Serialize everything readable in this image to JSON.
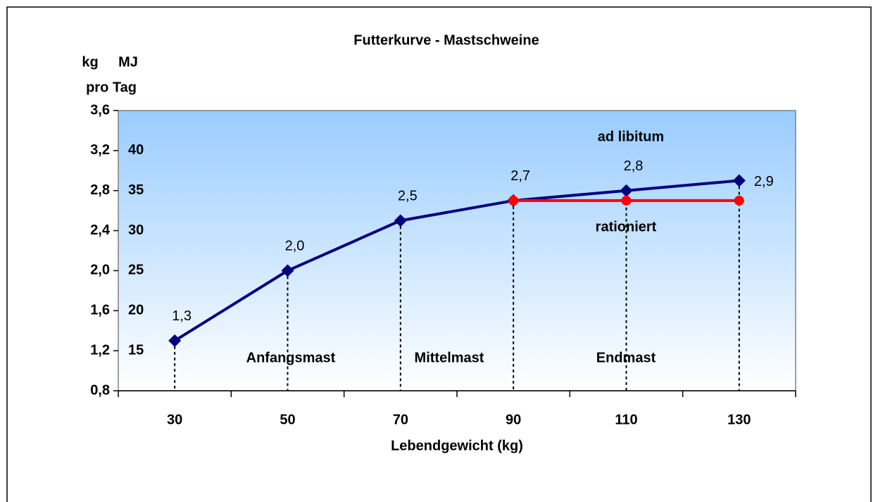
{
  "chart_data": {
    "type": "line",
    "title": "Futterkurve - Mastschweine",
    "x_label": "Lebendgewicht (kg)",
    "y_label": "kg",
    "y2_label": "MJ",
    "y_unit_note": "pro Tag",
    "categories": [
      "30",
      "50",
      "70",
      "90",
      "110",
      "130"
    ],
    "series": [
      {
        "name": "ad libitum",
        "color": "#000080",
        "marker": "diamond",
        "values": [
          1.3,
          2.0,
          2.5,
          2.7,
          2.8,
          2.9
        ],
        "value_labels": [
          "1,3",
          "2,0",
          "2,5",
          "2,7",
          "2,8",
          "2,9"
        ]
      },
      {
        "name": "rationiert",
        "color": "#ff0000",
        "marker": "circle",
        "values": [
          null,
          null,
          null,
          2.7,
          2.7,
          2.7
        ]
      }
    ],
    "annotations": [
      "Anfangsmast",
      "Mittelmast",
      "Endmast"
    ],
    "ylim": [
      0.8,
      3.6
    ],
    "yticks": [
      {
        "value": 0.8,
        "label": "0,8"
      },
      {
        "value": 1.2,
        "label": "1,2"
      },
      {
        "value": 1.6,
        "label": "1,6"
      },
      {
        "value": 2.0,
        "label": "2,0"
      },
      {
        "value": 2.4,
        "label": "2,4"
      },
      {
        "value": 2.8,
        "label": "2,8"
      },
      {
        "value": 3.2,
        "label": "3,2"
      },
      {
        "value": 3.6,
        "label": "3,6"
      }
    ],
    "y2lim": [
      10,
      45
    ],
    "y2ticks": [
      15,
      20,
      25,
      30,
      35,
      40
    ],
    "drop_lines": true
  }
}
